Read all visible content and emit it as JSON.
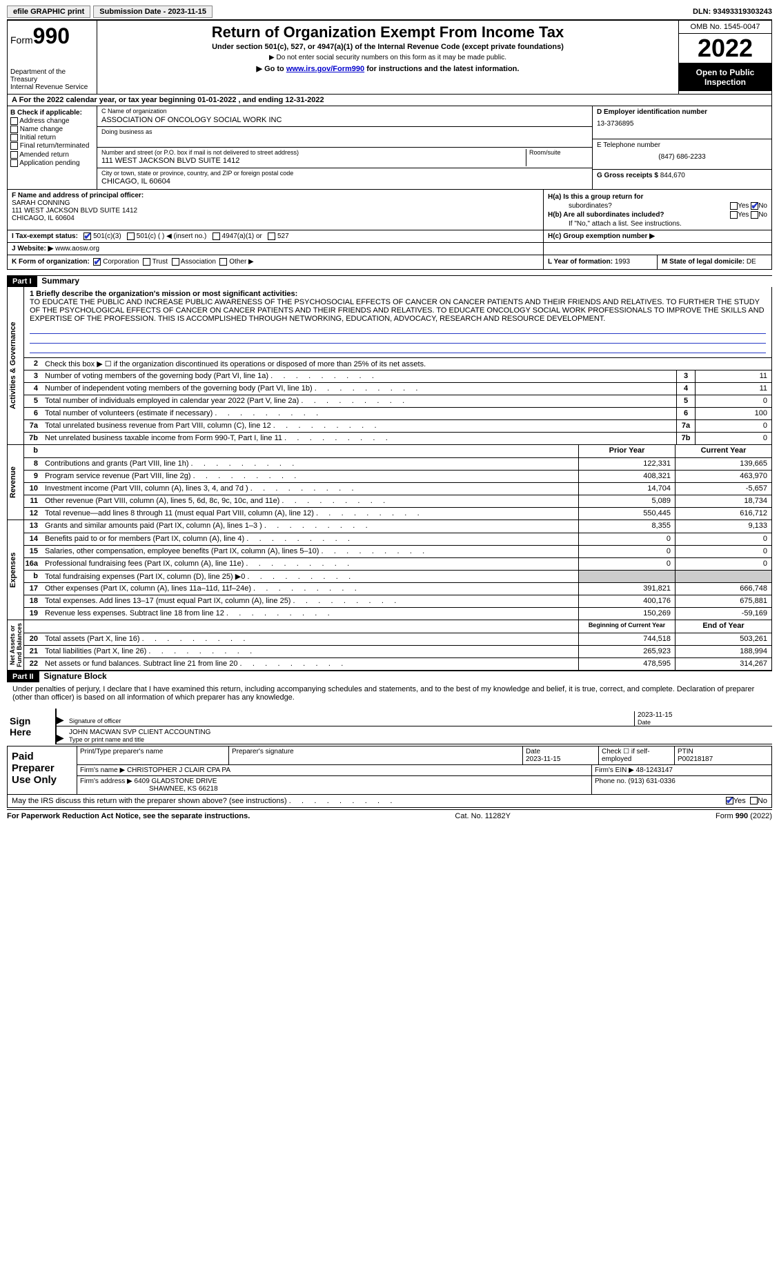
{
  "topbar": {
    "efile": "efile GRAPHIC print",
    "submit": "Submission Date - 2023-11-15",
    "dln": "DLN: 93493319303243"
  },
  "header": {
    "form_prefix": "Form",
    "form_no": "990",
    "dept": "Department of the Treasury\nInternal Revenue Service",
    "title": "Return of Organization Exempt From Income Tax",
    "sub1": "Under section 501(c), 527, or 4947(a)(1) of the Internal Revenue Code (except private foundations)",
    "sub2": "▶ Do not enter social security numbers on this form as it may be made public.",
    "sub3a": "▶ Go to ",
    "sub3_link": "www.irs.gov/Form990",
    "sub3b": " for instructions and the latest information.",
    "omb": "OMB No. 1545-0047",
    "year": "2022",
    "open": "Open to Public Inspection"
  },
  "rowA": "A For the 2022 calendar year, or tax year beginning 01-01-2022   , and ending 12-31-2022",
  "colB": {
    "hdr": "B Check if applicable:",
    "o1": "Address change",
    "o2": "Name change",
    "o3": "Initial return",
    "o4": "Final return/terminated",
    "o5": "Amended return",
    "o6": "Application pending"
  },
  "colC": {
    "name_label": "C Name of organization",
    "name": "ASSOCIATION OF ONCOLOGY SOCIAL WORK INC",
    "dba_label": "Doing business as",
    "addr_label": "Number and street (or P.O. box if mail is not delivered to street address)",
    "room_label": "Room/suite",
    "addr": "111 WEST JACKSON BLVD SUITE 1412",
    "city_label": "City or town, state or province, country, and ZIP or foreign postal code",
    "city": "CHICAGO, IL  60604"
  },
  "colD": {
    "ein_label": "D Employer identification number",
    "ein": "13-3736895",
    "tel_label": "E Telephone number",
    "tel": "(847) 686-2233",
    "gross_label": "G Gross receipts $",
    "gross": "844,670"
  },
  "rowF": {
    "label": "F Name and address of principal officer:",
    "name": "SARAH CONNING",
    "addr1": "111 WEST JACKSON BLVD SUITE 1412",
    "addr2": "CHICAGO, IL  60604"
  },
  "rowH": {
    "ha": "H(a)  Is this a group return for",
    "ha2": "subordinates?",
    "hb": "H(b)  Are all subordinates included?",
    "hb2": "If \"No,\" attach a list. See instructions.",
    "hc": "H(c)  Group exemption number ▶",
    "yes": "Yes",
    "no": "No"
  },
  "rowI": {
    "label": "I    Tax-exempt status:",
    "o1": "501(c)(3)",
    "o2": "501(c) (  ) ◀ (insert no.)",
    "o3": "4947(a)(1) or",
    "o4": "527"
  },
  "rowJ": {
    "label": "J   Website: ▶",
    "val": "www.aosw.org"
  },
  "rowK": {
    "label": "K Form of organization:",
    "o1": "Corporation",
    "o2": "Trust",
    "o3": "Association",
    "o4": "Other ▶"
  },
  "rowL": {
    "label": "L Year of formation:",
    "val": "1993"
  },
  "rowM": {
    "label": "M State of legal domicile:",
    "val": "DE"
  },
  "part1": {
    "num": "Part I",
    "title": "Summary"
  },
  "mission": {
    "label": "1   Briefly describe the organization's mission or most significant activities:",
    "text": "TO EDUCATE THE PUBLIC AND INCREASE PUBLIC AWARENESS OF THE PSYCHOSOCIAL EFFECTS OF CANCER ON CANCER PATIENTS AND THEIR FRIENDS AND RELATIVES. TO FURTHER THE STUDY OF THE PSYCHOLOGICAL EFFECTS OF CANCER ON CANCER PATIENTS AND THEIR FRIENDS AND RELATIVES. TO EDUCATE ONCOLOGY SOCIAL WORK PROFESSIONALS TO IMPROVE THE SKILLS AND EXPERTISE OF THE PROFESSION. THIS IS ACCOMPLISHED THROUGH NETWORKING, EDUCATION, ADVOCACY, RESEARCH AND RESOURCE DEVELOPMENT."
  },
  "vlabels": {
    "act": "Activities & Governance",
    "rev": "Revenue",
    "exp": "Expenses",
    "net": "Net Assets or\nFund Balances"
  },
  "lines_single": [
    {
      "n": "2",
      "t": "Check this box ▶ ☐  if the organization discontinued its operations or disposed of more than 25% of its net assets.",
      "ref": "",
      "v": ""
    },
    {
      "n": "3",
      "t": "Number of voting members of the governing body (Part VI, line 1a)",
      "ref": "3",
      "v": "11"
    },
    {
      "n": "4",
      "t": "Number of independent voting members of the governing body (Part VI, line 1b)",
      "ref": "4",
      "v": "11"
    },
    {
      "n": "5",
      "t": "Total number of individuals employed in calendar year 2022 (Part V, line 2a)",
      "ref": "5",
      "v": "0"
    },
    {
      "n": "6",
      "t": "Total number of volunteers (estimate if necessary)",
      "ref": "6",
      "v": "100"
    },
    {
      "n": "7a",
      "t": "Total unrelated business revenue from Part VIII, column (C), line 12",
      "ref": "7a",
      "v": "0"
    },
    {
      "n": "7b",
      "t": "Net unrelated business taxable income from Form 990-T, Part I, line 11",
      "ref": "7b",
      "v": "0"
    }
  ],
  "col_hdrs": {
    "b": "b",
    "prior": "Prior Year",
    "current": "Current Year",
    "boy": "Beginning of Current Year",
    "eoy": "End of Year"
  },
  "lines_rev": [
    {
      "n": "8",
      "t": "Contributions and grants (Part VIII, line 1h)",
      "p": "122,331",
      "c": "139,665"
    },
    {
      "n": "9",
      "t": "Program service revenue (Part VIII, line 2g)",
      "p": "408,321",
      "c": "463,970"
    },
    {
      "n": "10",
      "t": "Investment income (Part VIII, column (A), lines 3, 4, and 7d )",
      "p": "14,704",
      "c": "-5,657"
    },
    {
      "n": "11",
      "t": "Other revenue (Part VIII, column (A), lines 5, 6d, 8c, 9c, 10c, and 11e)",
      "p": "5,089",
      "c": "18,734"
    },
    {
      "n": "12",
      "t": "Total revenue—add lines 8 through 11 (must equal Part VIII, column (A), line 12)",
      "p": "550,445",
      "c": "616,712"
    }
  ],
  "lines_exp": [
    {
      "n": "13",
      "t": "Grants and similar amounts paid (Part IX, column (A), lines 1–3 )",
      "p": "8,355",
      "c": "9,133"
    },
    {
      "n": "14",
      "t": "Benefits paid to or for members (Part IX, column (A), line 4)",
      "p": "0",
      "c": "0"
    },
    {
      "n": "15",
      "t": "Salaries, other compensation, employee benefits (Part IX, column (A), lines 5–10)",
      "p": "0",
      "c": "0"
    },
    {
      "n": "16a",
      "t": "Professional fundraising fees (Part IX, column (A), line 11e)",
      "p": "0",
      "c": "0"
    },
    {
      "n": "b",
      "t": "Total fundraising expenses (Part IX, column (D), line 25) ▶0",
      "p": "grey",
      "c": "grey"
    },
    {
      "n": "17",
      "t": "Other expenses (Part IX, column (A), lines 11a–11d, 11f–24e)",
      "p": "391,821",
      "c": "666,748"
    },
    {
      "n": "18",
      "t": "Total expenses. Add lines 13–17 (must equal Part IX, column (A), line 25)",
      "p": "400,176",
      "c": "675,881"
    },
    {
      "n": "19",
      "t": "Revenue less expenses. Subtract line 18 from line 12",
      "p": "150,269",
      "c": "-59,169"
    }
  ],
  "lines_net": [
    {
      "n": "20",
      "t": "Total assets (Part X, line 16)",
      "p": "744,518",
      "c": "503,261"
    },
    {
      "n": "21",
      "t": "Total liabilities (Part X, line 26)",
      "p": "265,923",
      "c": "188,994"
    },
    {
      "n": "22",
      "t": "Net assets or fund balances. Subtract line 21 from line 20",
      "p": "478,595",
      "c": "314,267"
    }
  ],
  "part2": {
    "num": "Part II",
    "title": "Signature Block"
  },
  "sig": {
    "decl": "Under penalties of perjury, I declare that I have examined this return, including accompanying schedules and statements, and to the best of my knowledge and belief, it is true, correct, and complete. Declaration of preparer (other than officer) is based on all information of which preparer has any knowledge.",
    "sign_here": "Sign Here",
    "sig_officer": "Signature of officer",
    "date": "Date",
    "date_val": "2023-11-15",
    "name": "JOHN MACWAN  SVP CLIENT ACCOUNTING",
    "name_label": "Type or print name and title"
  },
  "prep": {
    "title": "Paid Preparer Use Only",
    "h1": "Print/Type preparer's name",
    "h2": "Preparer's signature",
    "h3": "Date",
    "h3v": "2023-11-15",
    "h4": "Check ☐ if self-employed",
    "h5": "PTIN",
    "h5v": "P00218187",
    "firm_name_l": "Firm's name    ▶",
    "firm_name": "CHRISTOPHER J CLAIR CPA PA",
    "firm_ein_l": "Firm's EIN ▶",
    "firm_ein": "48-1243147",
    "firm_addr_l": "Firm's address ▶",
    "firm_addr1": "6409 GLADSTONE DRIVE",
    "firm_addr2": "SHAWNEE, KS  66218",
    "phone_l": "Phone no.",
    "phone": "(913) 631-0336"
  },
  "discuss": "May the IRS discuss this return with the preparer shown above? (see instructions)",
  "footer": {
    "pra": "For Paperwork Reduction Act Notice, see the separate instructions.",
    "cat": "Cat. No. 11282Y",
    "form": "Form 990 (2022)"
  }
}
